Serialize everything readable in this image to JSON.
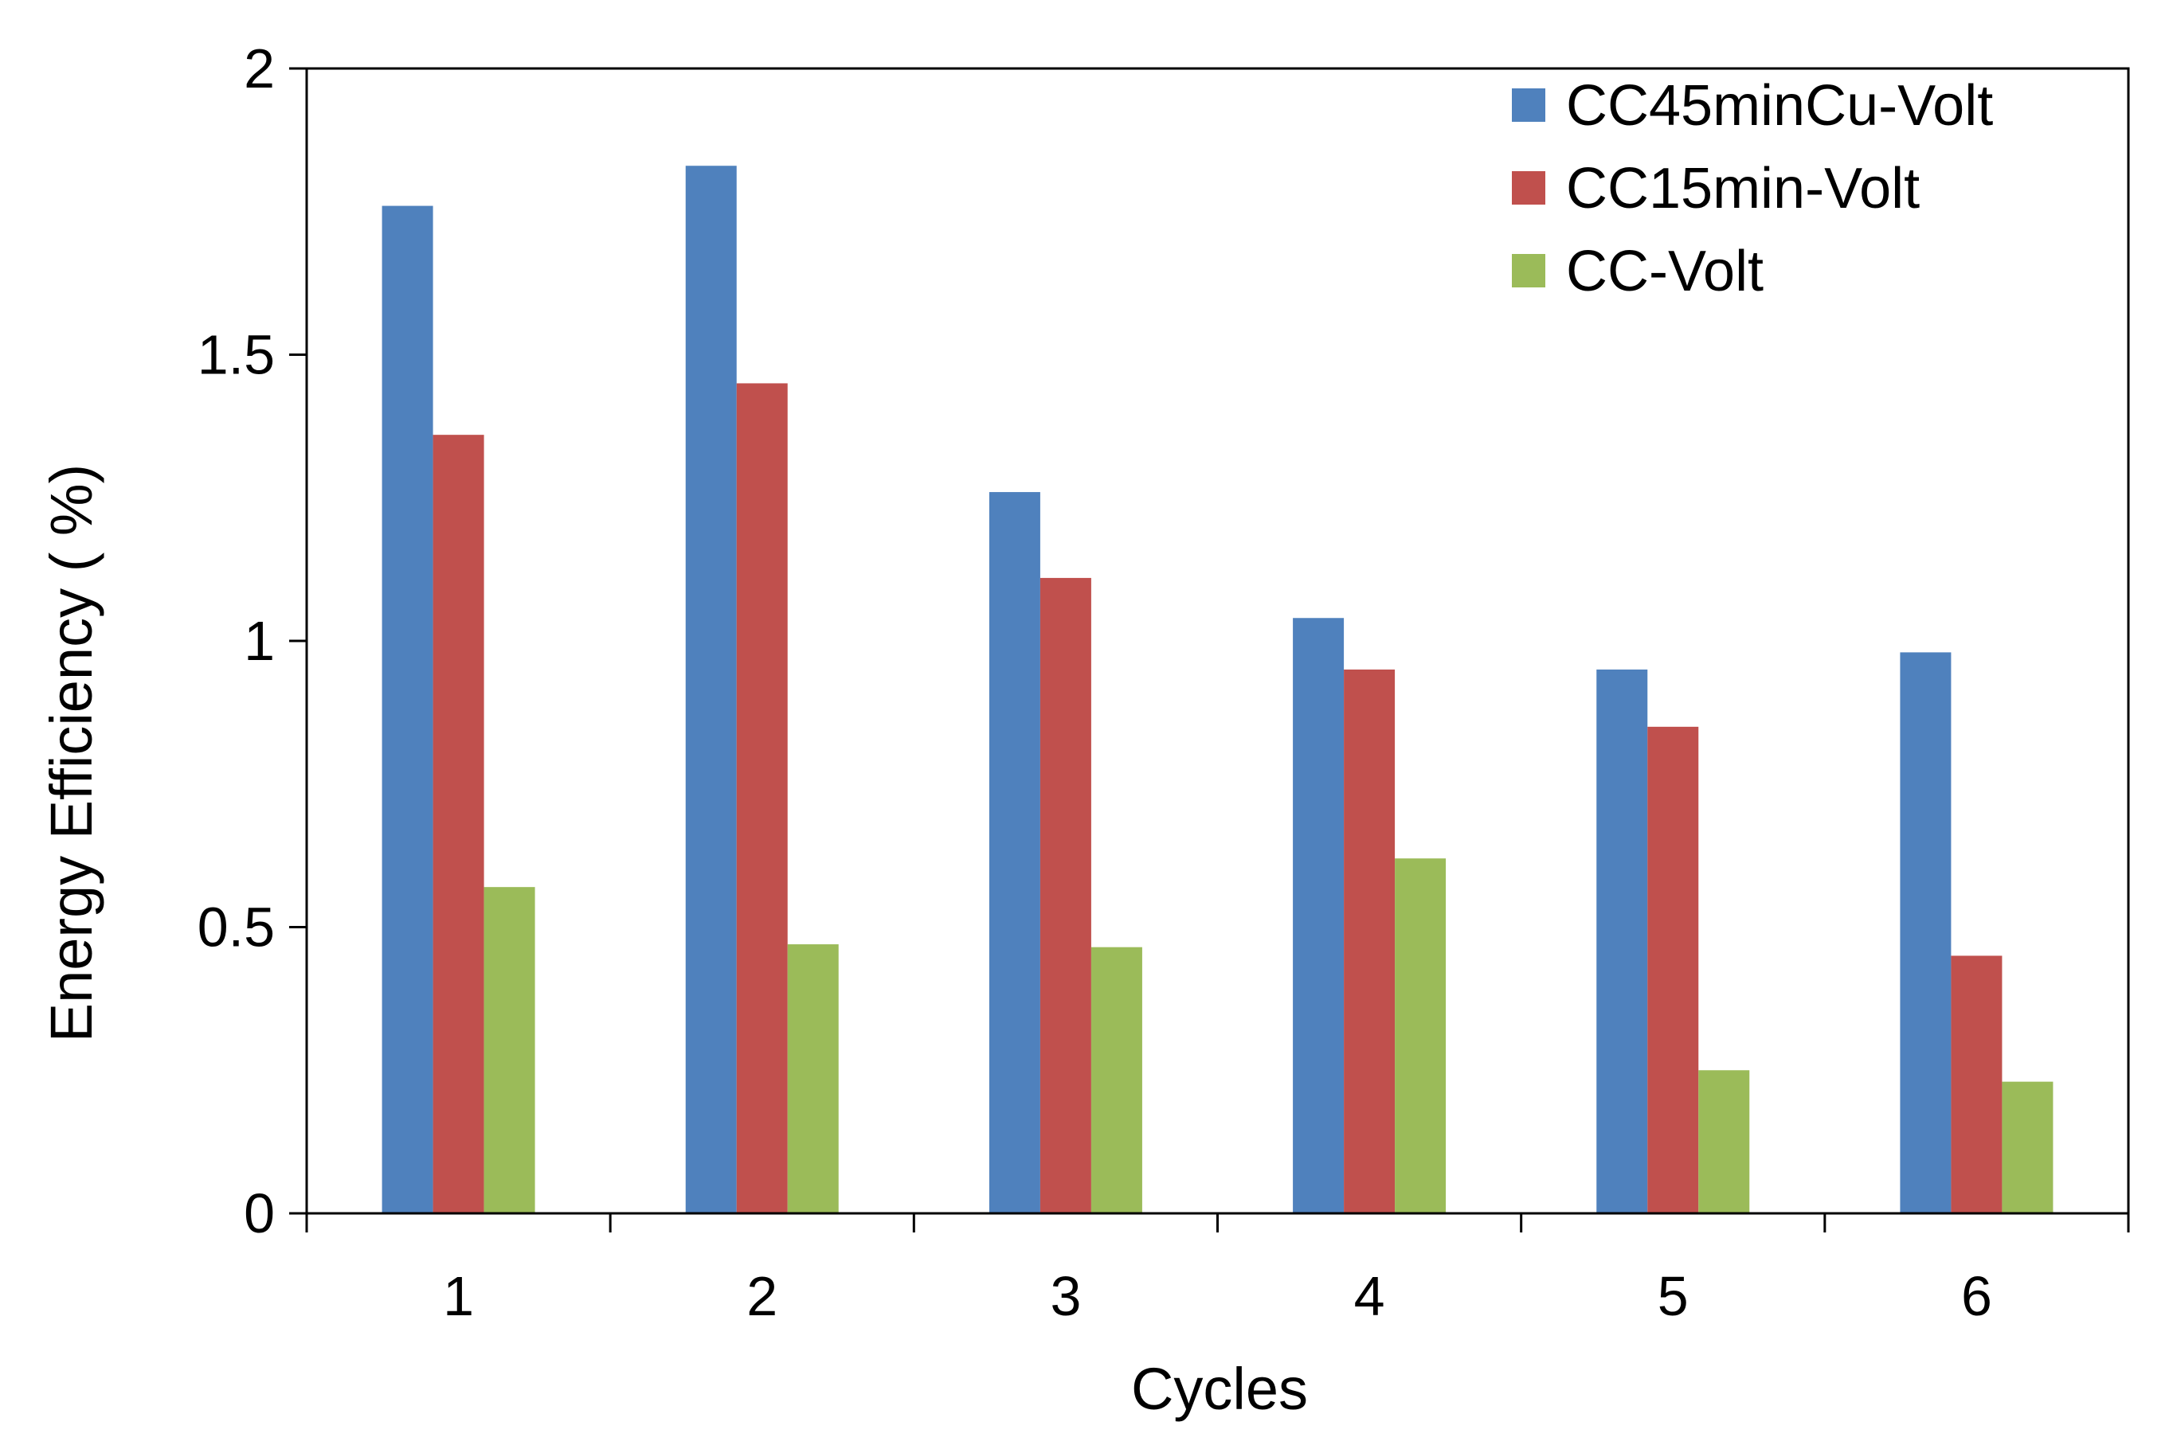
{
  "chart_data": {
    "type": "bar",
    "title": "",
    "xlabel": "Cycles",
    "ylabel": "Energy Efficiency ( %)",
    "categories": [
      "1",
      "2",
      "3",
      "4",
      "5",
      "6"
    ],
    "series": [
      {
        "name": "CC45minCu-Volt",
        "color": "#4F81BD",
        "values": [
          1.76,
          1.83,
          1.26,
          1.04,
          0.95,
          0.98
        ]
      },
      {
        "name": "CC15min-Volt",
        "color": "#C0504D",
        "values": [
          1.36,
          1.45,
          1.11,
          0.95,
          0.85,
          0.45
        ]
      },
      {
        "name": "CC-Volt",
        "color": "#9BBB59",
        "values": [
          0.57,
          0.47,
          0.465,
          0.62,
          0.25,
          0.23
        ]
      }
    ],
    "ylim": [
      0,
      2
    ],
    "yticks": [
      "0",
      "0.5",
      "1",
      "1.5",
      "2"
    ],
    "grid": false,
    "legend_position": "top-right"
  }
}
